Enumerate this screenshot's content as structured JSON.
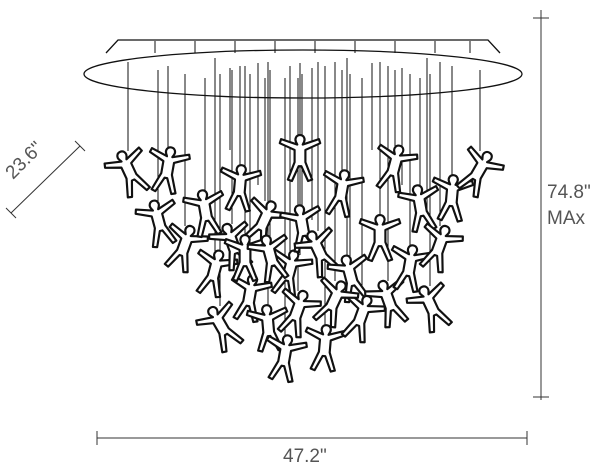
{
  "dimensions": {
    "width": "47.2\"",
    "height": "74.8\"",
    "height_qualifier": "MAx",
    "depth": "23.6\""
  }
}
